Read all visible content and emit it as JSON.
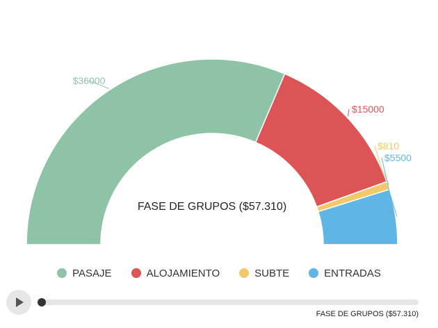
{
  "chart_data": {
    "type": "pie",
    "subtype": "semi-donut",
    "title": "FASE DE GRUPOS ($57.310)",
    "categories": [
      "PASAJE",
      "ALOJAMIENTO",
      "SUBTE",
      "ENTRADAS"
    ],
    "values": [
      36000,
      15000,
      810,
      5500
    ],
    "data_labels": [
      "$36000",
      "$15000",
      "$810",
      "$5500"
    ],
    "colors": [
      "#8fc3a8",
      "#dc5456",
      "#f2c96a",
      "#5fb6e4"
    ],
    "legend_position": "bottom"
  },
  "legend": {
    "items": [
      {
        "label": "PASAJE",
        "color": "#8fc3a8"
      },
      {
        "label": "ALOJAMIENTO",
        "color": "#dc5456"
      },
      {
        "label": "SUBTE",
        "color": "#f2c96a"
      },
      {
        "label": "ENTRADAS",
        "color": "#5fb6e4"
      }
    ]
  },
  "player": {
    "play_icon": "play-icon",
    "progress": 0,
    "current_label": "FASE DE GRUPOS ($57.310)"
  }
}
